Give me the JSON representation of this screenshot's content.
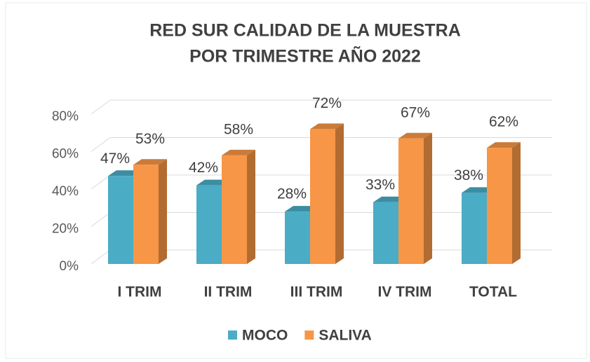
{
  "chart_data": {
    "type": "bar3d",
    "title": [
      "RED SUR CALIDAD DE LA MUESTRA",
      "POR TRIMESTRE AÑO 2022"
    ],
    "categories": [
      "I TRIM",
      "II TRIM",
      "III TRIM",
      "IV TRIM",
      "TOTAL"
    ],
    "series": [
      {
        "name": "MOCO",
        "color": "#4bacc6",
        "values": [
          47,
          42,
          28,
          33,
          38
        ],
        "value_labels": [
          "47%",
          "42%",
          "28%",
          "33%",
          "38%"
        ]
      },
      {
        "name": "SALIVA",
        "color": "#f79646",
        "values": [
          53,
          58,
          72,
          67,
          62
        ],
        "value_labels": [
          "53%",
          "58%",
          "72%",
          "67%",
          "62%"
        ]
      }
    ],
    "ylim": [
      0,
      80
    ],
    "yticks": [
      {
        "value": 0,
        "label": "0%"
      },
      {
        "value": 20,
        "label": "20%"
      },
      {
        "value": 40,
        "label": "40%"
      },
      {
        "value": 60,
        "label": "60%"
      },
      {
        "value": 80,
        "label": "80%"
      }
    ],
    "grid": true,
    "legend": "bottom"
  }
}
